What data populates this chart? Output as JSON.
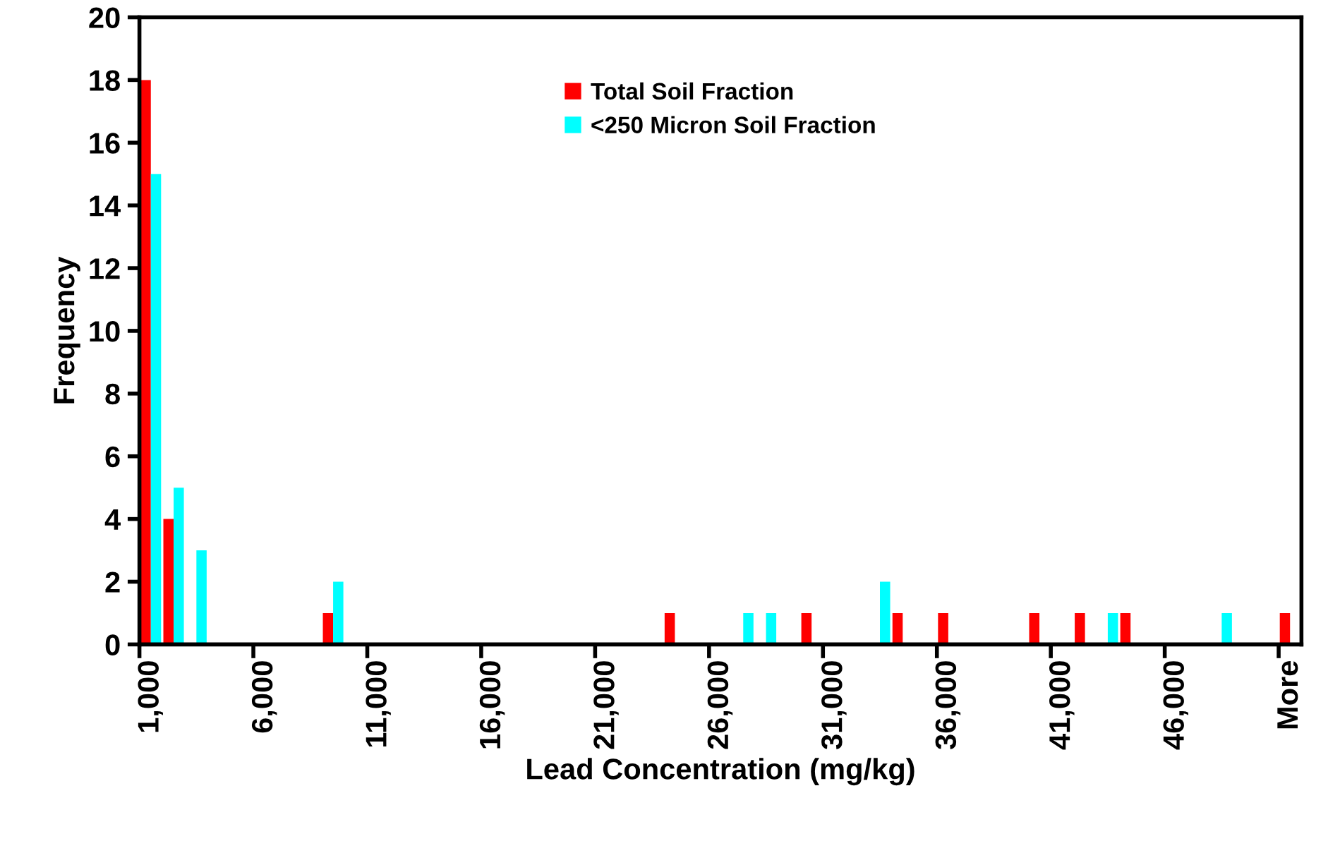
{
  "chart_data": {
    "type": "bar",
    "xlabel": "Lead Concentration (mg/kg)",
    "ylabel": "Frequency",
    "categories": [
      "1,000",
      null,
      null,
      null,
      null,
      "6,000",
      null,
      null,
      null,
      null,
      "11,000",
      null,
      null,
      null,
      null,
      "16,000",
      null,
      null,
      null,
      null,
      "21,000",
      null,
      null,
      null,
      null,
      "26,000",
      null,
      null,
      null,
      null,
      "31,000",
      null,
      null,
      null,
      null,
      "36,000",
      null,
      null,
      null,
      null,
      "41,000",
      null,
      null,
      null,
      null,
      "46,000",
      null,
      null,
      null,
      null,
      "More"
    ],
    "series": [
      {
        "name": "Total Soil Fraction",
        "color": "#ff0000",
        "values": [
          18,
          4,
          0,
          0,
          0,
          0,
          0,
          0,
          1,
          0,
          0,
          0,
          0,
          0,
          0,
          0,
          0,
          0,
          0,
          0,
          0,
          0,
          0,
          1,
          0,
          0,
          0,
          0,
          0,
          1,
          0,
          0,
          0,
          1,
          0,
          1,
          0,
          0,
          0,
          1,
          0,
          1,
          0,
          1,
          0,
          0,
          0,
          0,
          0,
          0,
          1
        ]
      },
      {
        "name": "<250 Micron Soil Fraction",
        "color": "#00ffff",
        "values": [
          15,
          5,
          3,
          0,
          0,
          0,
          0,
          0,
          2,
          0,
          0,
          0,
          0,
          0,
          0,
          0,
          0,
          0,
          0,
          0,
          0,
          0,
          0,
          0,
          0,
          0,
          1,
          1,
          0,
          0,
          0,
          0,
          2,
          0,
          0,
          0,
          0,
          0,
          0,
          0,
          0,
          0,
          1,
          0,
          0,
          0,
          0,
          1,
          0,
          0,
          0
        ]
      }
    ],
    "ylim": [
      0,
      20
    ],
    "yticks": [
      0,
      2,
      4,
      6,
      8,
      10,
      12,
      14,
      16,
      18,
      20
    ],
    "grid": false,
    "legend": "top"
  }
}
